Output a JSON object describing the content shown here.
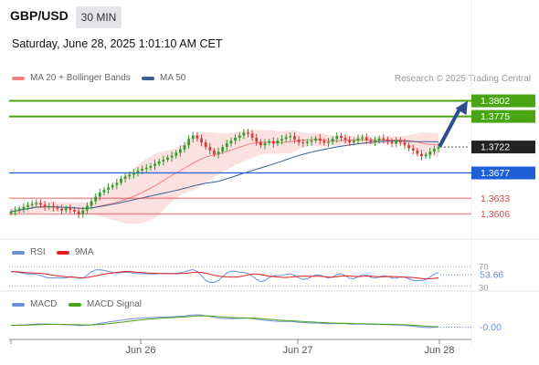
{
  "header": {
    "symbol": "GBP/USD",
    "timeframe": "30 MIN",
    "datetime": "Saturday, June 28, 2025 1:01:10 AM CET",
    "copyright": "Research © 2025 Trading Central"
  },
  "colors": {
    "up_candle": "#2e9e2e",
    "down_candle": "#d83b3b",
    "ma20": "#f08080",
    "ma50": "#3d5f8f",
    "bollinger_fill": "#fbdcdc",
    "resistance": "#4aa514",
    "pivot": "#1f5fd6",
    "support": "#e04848",
    "rsi": "#6a8fd8",
    "rsi_9ma": "#e02020",
    "macd": "#6a8fd8",
    "macd_signal": "#4aa514",
    "arrow": "#2b4f8c"
  },
  "chart_data": [
    {
      "type": "candlestick",
      "name": "price",
      "legend": [
        {
          "label": "MA 20 + Bollinger Bands",
          "color": "#f08080"
        },
        {
          "label": "MA 50",
          "color": "#3d5f8f"
        }
      ],
      "x_ticks": [
        "Jun 26",
        "Jun 27",
        "Jun 28"
      ],
      "ylim": [
        1.3575,
        1.3825
      ],
      "levels": [
        {
          "label": "1.3802",
          "value": 1.3802,
          "kind": "resistance"
        },
        {
          "label": "1.3775",
          "value": 1.3775,
          "kind": "resistance"
        },
        {
          "label": "1.3722",
          "value": 1.3722,
          "kind": "last"
        },
        {
          "label": "1.3677",
          "value": 1.3677,
          "kind": "pivot"
        },
        {
          "label": "1.3633",
          "value": 1.3633,
          "kind": "support"
        },
        {
          "label": "1.3606",
          "value": 1.3606,
          "kind": "support"
        }
      ],
      "close": [
        1.361,
        1.3612,
        1.3615,
        1.3618,
        1.3621,
        1.3623,
        1.3625,
        1.3622,
        1.3618,
        1.362,
        1.3617,
        1.3615,
        1.3612,
        1.3616,
        1.3613,
        1.361,
        1.3605,
        1.3612,
        1.362,
        1.3628,
        1.3636,
        1.3643,
        1.3648,
        1.3652,
        1.3656,
        1.366,
        1.3667,
        1.3671,
        1.3674,
        1.3677,
        1.3681,
        1.3684,
        1.3686,
        1.3689,
        1.3693,
        1.3697,
        1.37,
        1.3704,
        1.3707,
        1.3712,
        1.3718,
        1.3725,
        1.3736,
        1.3742,
        1.3737,
        1.373,
        1.3722,
        1.3716,
        1.3709,
        1.3714,
        1.3722,
        1.3728,
        1.3733,
        1.3738,
        1.3742,
        1.3747,
        1.3745,
        1.3738,
        1.3731,
        1.3725,
        1.3729,
        1.3732,
        1.3728,
        1.3733,
        1.3736,
        1.3739,
        1.3741,
        1.3735,
        1.373,
        1.3729,
        1.3731,
        1.3733,
        1.3737,
        1.3733,
        1.3729,
        1.3731,
        1.3736,
        1.3741,
        1.3738,
        1.3734,
        1.373,
        1.3733,
        1.3737,
        1.3739,
        1.3734,
        1.3731,
        1.3733,
        1.3737,
        1.3735,
        1.3731,
        1.3728,
        1.3733,
        1.373,
        1.3725,
        1.372,
        1.3716,
        1.371,
        1.3706,
        1.3709,
        1.3714,
        1.3719,
        1.3722
      ]
    },
    {
      "type": "line",
      "name": "rsi",
      "legend": [
        {
          "label": "RSI",
          "color": "#6a8fd8"
        },
        {
          "label": "9MA",
          "color": "#e02020"
        }
      ],
      "ticks": [
        "70",
        "30"
      ],
      "current_value": "53.66",
      "ylim": [
        25,
        75
      ]
    },
    {
      "type": "line",
      "name": "macd",
      "legend": [
        {
          "label": "MACD",
          "color": "#6a8fd8"
        },
        {
          "label": "MACD Signal",
          "color": "#4aa514"
        }
      ],
      "current_value": "-0.00"
    }
  ]
}
